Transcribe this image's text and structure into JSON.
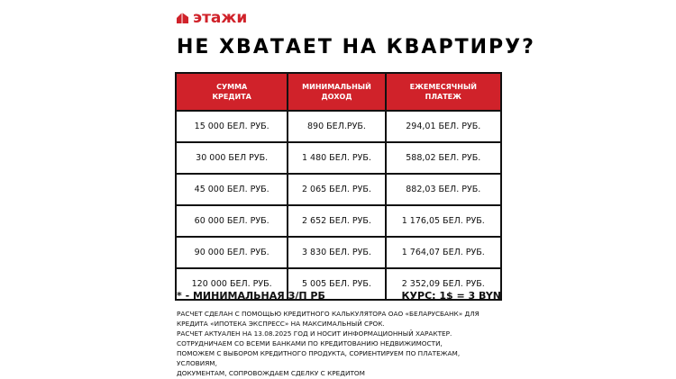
{
  "brand": {
    "name": "этажи",
    "color": "#d0222a"
  },
  "title": "НЕ ХВАТАЕТ НА КВАРТИРУ?",
  "table": {
    "headers": [
      [
        "СУММА",
        "КРЕДИТА"
      ],
      [
        "МИНИМАЛЬНЫЙ",
        "ДОХОД"
      ],
      [
        "ЕЖЕМЕСЯЧНЫЙ",
        "ПЛАТЕЖ"
      ]
    ],
    "rows": [
      [
        "15 000 БЕЛ. РУБ.",
        "890 БЕЛ.РУБ.",
        "294,01 БЕЛ. РУБ."
      ],
      [
        "30 000 БЕЛ РУБ.",
        "1 480 БЕЛ. РУБ.",
        "588,02 БЕЛ. РУБ."
      ],
      [
        "45 000 БЕЛ. РУБ.",
        "2 065 БЕЛ. РУБ.",
        "882,03 БЕЛ. РУБ."
      ],
      [
        "60 000 БЕЛ. РУБ.",
        "2 652 БЕЛ. РУБ.",
        "1 176,05 БЕЛ. РУБ."
      ],
      [
        "90 000 БЕЛ. РУБ.",
        "3 830 БЕЛ. РУБ.",
        "1 764,07 БЕЛ. РУБ."
      ],
      [
        "120 000 БЕЛ. РУБ.",
        "5 005 БЕЛ. РУБ.",
        "2 352,09 БЕЛ. РУБ."
      ]
    ]
  },
  "note": "* - МИНИМАЛЬНАЯ З/П РБ",
  "rate": "КУРС: 1$ = 3 BYN",
  "disclaimer": [
    "РАСЧЕТ СДЕЛАН С ПОМОЩЬЮ КРЕДИТНОГО КАЛЬКУЛЯТОРА ОАО «БЕЛАРУСБАНК» ДЛЯ",
    "КРЕДИТА «ИПОТЕКА ЭКСПРЕСС» НА МАКСИМАЛЬНЫЙ СРОК.",
    "РАСЧЕТ АКТУАЛЕН НА 13.08.2025 ГОД И НОСИТ ИНФОРМАЦИОННЫЙ ХАРАКТЕР.",
    "СОТРУДНИЧАЕМ СО ВСЕМИ БАНКАМИ ПО КРЕДИТОВАНИЮ НЕДВИЖИМОСТИ,",
    "ПОМОЖЕМ С ВЫБОРОМ КРЕДИТНОГО ПРОДУКТА, СОРИЕНТИРУЕМ ПО ПЛАТЕЖАМ,",
    "УСЛОВИЯМ,",
    "ДОКУМЕНТАМ, СОПРОВОЖДАЕМ СДЕЛКУ С КРЕДИТОМ"
  ]
}
